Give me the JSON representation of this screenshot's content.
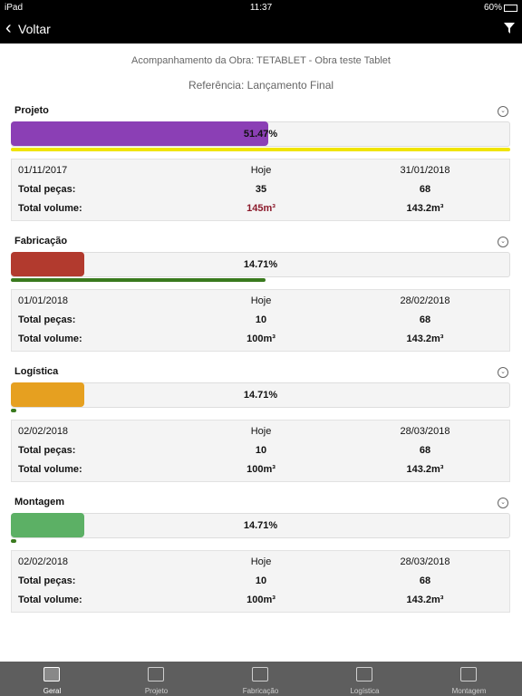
{
  "status_bar": {
    "device": "iPad",
    "time": "11:37",
    "battery": "60%"
  },
  "nav": {
    "back": "Voltar"
  },
  "header": {
    "title": "Acompanhamento da Obra: TETABLET - Obra teste Tablet",
    "reference": "Referência: Lançamento Final"
  },
  "sections": [
    {
      "name": "Projeto",
      "color": "#8b3fb5",
      "progress": 51.47,
      "progress_label": "51.47%",
      "track_color": "#f0e400",
      "track_progress": 100,
      "start_date": "01/11/2017",
      "today": "Hoje",
      "end_date": "31/01/2018",
      "pieces_label": "Total peças:",
      "pieces_today": 35,
      "pieces_total": 68,
      "volume_label": "Total volume:",
      "volume_today": "145m³",
      "volume_today_color": "#8b1a2b",
      "volume_total": "143.2m³"
    },
    {
      "name": "Fabricação",
      "color": "#b23a2e",
      "progress": 14.71,
      "progress_label": "14.71%",
      "track_color": "#3a7a1e",
      "track_progress": 51,
      "start_date": "01/01/2018",
      "today": "Hoje",
      "end_date": "28/02/2018",
      "pieces_label": "Total peças:",
      "pieces_today": 10,
      "pieces_total": 68,
      "volume_label": "Total volume:",
      "volume_today": "100m³",
      "volume_today_color": "#111111",
      "volume_total": "143.2m³"
    },
    {
      "name": "Logística",
      "color": "#e6a020",
      "progress": 14.71,
      "progress_label": "14.71%",
      "track_color": "#3a7a1e",
      "track_progress": 1,
      "start_date": "02/02/2018",
      "today": "Hoje",
      "end_date": "28/03/2018",
      "pieces_label": "Total peças:",
      "pieces_today": 10,
      "pieces_total": 68,
      "volume_label": "Total volume:",
      "volume_today": "100m³",
      "volume_today_color": "#111111",
      "volume_total": "143.2m³"
    },
    {
      "name": "Montagem",
      "color": "#5cb065",
      "progress": 14.71,
      "progress_label": "14.71%",
      "track_color": "#3a7a1e",
      "track_progress": 1,
      "start_date": "02/02/2018",
      "today": "Hoje",
      "end_date": "28/03/2018",
      "pieces_label": "Total peças:",
      "pieces_today": 10,
      "pieces_total": 68,
      "volume_label": "Total volume:",
      "volume_today": "100m³",
      "volume_today_color": "#111111",
      "volume_total": "143.2m³"
    }
  ],
  "tabs": [
    "Geral",
    "Projeto",
    "Fabricação",
    "Logística",
    "Montagem"
  ]
}
